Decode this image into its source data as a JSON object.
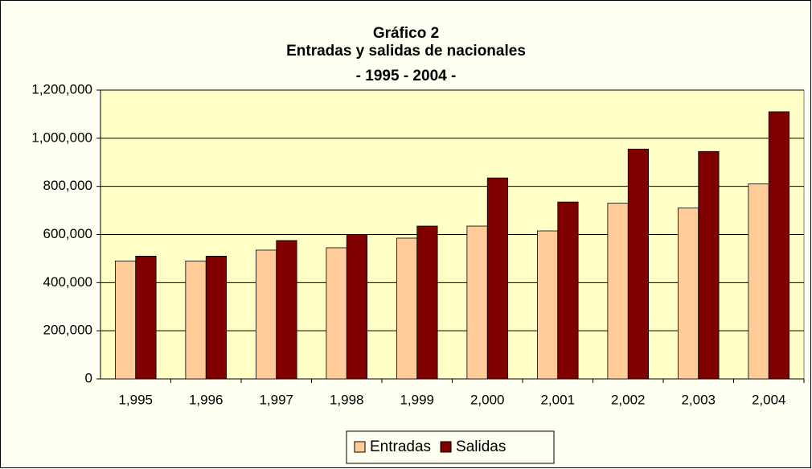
{
  "chart_data": {
    "type": "bar",
    "title": [
      "Gráfico 2",
      "Entradas y salidas de nacionales",
      "- 1995 - 2004 -"
    ],
    "categories": [
      "1,995",
      "1,996",
      "1,997",
      "1,998",
      "1,999",
      "2,000",
      "2,001",
      "2,002",
      "2,003",
      "2,004"
    ],
    "series": [
      {
        "name": "Entradas",
        "color": "#ffcc99",
        "values": [
          490000,
          490000,
          535000,
          545000,
          585000,
          635000,
          615000,
          730000,
          710000,
          810000
        ]
      },
      {
        "name": "Salidas",
        "color": "#800000",
        "values": [
          510000,
          510000,
          575000,
          600000,
          635000,
          835000,
          735000,
          955000,
          945000,
          1110000
        ]
      }
    ],
    "ylim": [
      0,
      1200000
    ],
    "yticks": [
      0,
      {
        "value": 200000,
        "label": "200,000"
      },
      {
        "value": 400000,
        "label": "400,000"
      },
      {
        "value": 600000,
        "label": "600,000"
      },
      {
        "value": 800000,
        "label": "800,000"
      },
      {
        "value": 1000000,
        "label": "1,000,000"
      },
      {
        "value": 1200000,
        "label": "1,200,000"
      }
    ],
    "grid": true,
    "legend": "bottom"
  }
}
